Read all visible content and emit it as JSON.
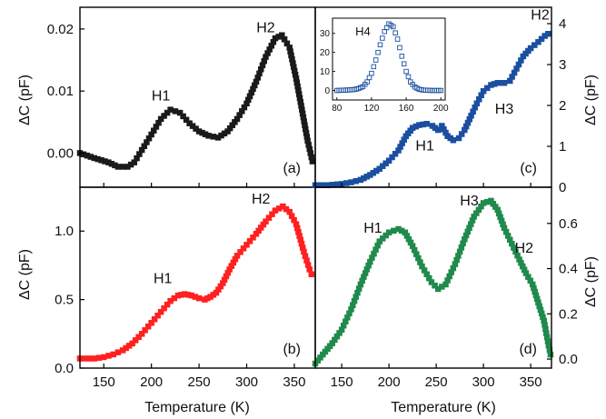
{
  "figure": {
    "x_label": "Temperature (K)",
    "y_label": "ΔC (pF)"
  },
  "chart_data": [
    {
      "id": "a",
      "type": "scatter",
      "panel_label": "(a)",
      "color": "#1a1a1a",
      "marker": "square",
      "xlabel": "Temperature (K)",
      "ylabel": "ΔC (pF)",
      "xlim": [
        125,
        372
      ],
      "ylim": [
        -0.0055,
        0.0235
      ],
      "yticks": [
        0.0,
        0.01,
        0.02
      ],
      "yticklabels": [
        "0.00",
        "0.01",
        "0.02"
      ],
      "y_axis_side": "left",
      "annotations": [
        {
          "text": "H1",
          "x": 210,
          "y": 0.0085
        },
        {
          "text": "H2",
          "x": 320,
          "y": 0.0195
        }
      ],
      "points": [
        [
          125,
          0.0
        ],
        [
          140,
          -0.0008
        ],
        [
          155,
          -0.0015
        ],
        [
          165,
          -0.0022
        ],
        [
          175,
          -0.0022
        ],
        [
          182,
          -0.0015
        ],
        [
          190,
          0.0005
        ],
        [
          200,
          0.003
        ],
        [
          210,
          0.0055
        ],
        [
          220,
          0.007
        ],
        [
          230,
          0.0065
        ],
        [
          240,
          0.0048
        ],
        [
          250,
          0.0035
        ],
        [
          260,
          0.0028
        ],
        [
          270,
          0.0025
        ],
        [
          280,
          0.0035
        ],
        [
          290,
          0.0055
        ],
        [
          300,
          0.008
        ],
        [
          310,
          0.0115
        ],
        [
          320,
          0.0155
        ],
        [
          330,
          0.0185
        ],
        [
          337,
          0.019
        ],
        [
          345,
          0.017
        ],
        [
          352,
          0.012
        ],
        [
          358,
          0.007
        ],
        [
          364,
          0.002
        ],
        [
          370,
          -0.002
        ]
      ]
    },
    {
      "id": "b",
      "type": "scatter",
      "panel_label": "(b)",
      "color": "#ff2020",
      "marker": "square",
      "xlabel": "Temperature (K)",
      "ylabel": "ΔC (pF)",
      "xlim": [
        125,
        372
      ],
      "ylim": [
        0,
        1.32
      ],
      "xticks": [
        150,
        200,
        250,
        300,
        350
      ],
      "yticks": [
        0.0,
        0.5,
        1.0
      ],
      "yticklabels": [
        "0.0",
        "0.5",
        "1.0"
      ],
      "y_axis_side": "left",
      "annotations": [
        {
          "text": "H1",
          "x": 212,
          "y": 0.62
        },
        {
          "text": "H2",
          "x": 315,
          "y": 1.2
        }
      ],
      "points": [
        [
          125,
          0.07
        ],
        [
          140,
          0.07
        ],
        [
          150,
          0.08
        ],
        [
          160,
          0.1
        ],
        [
          170,
          0.13
        ],
        [
          180,
          0.18
        ],
        [
          190,
          0.25
        ],
        [
          200,
          0.33
        ],
        [
          210,
          0.41
        ],
        [
          220,
          0.49
        ],
        [
          228,
          0.53
        ],
        [
          235,
          0.54
        ],
        [
          242,
          0.53
        ],
        [
          250,
          0.51
        ],
        [
          256,
          0.5
        ],
        [
          262,
          0.52
        ],
        [
          268,
          0.55
        ],
        [
          275,
          0.62
        ],
        [
          282,
          0.72
        ],
        [
          290,
          0.82
        ],
        [
          300,
          0.9
        ],
        [
          310,
          0.98
        ],
        [
          320,
          1.07
        ],
        [
          330,
          1.15
        ],
        [
          338,
          1.18
        ],
        [
          345,
          1.14
        ],
        [
          352,
          1.05
        ],
        [
          360,
          0.85
        ],
        [
          366,
          0.72
        ],
        [
          370,
          0.65
        ]
      ]
    },
    {
      "id": "c",
      "type": "scatter",
      "panel_label": "(c)",
      "color": "#1a4fa0",
      "marker": "square",
      "xlabel": "Temperature (K)",
      "ylabel": "ΔC (pF)",
      "xlim": [
        122,
        372
      ],
      "ylim": [
        0,
        4.4
      ],
      "yticks": [
        0,
        1,
        2,
        3,
        4
      ],
      "yticklabels": [
        "0",
        "1",
        "2",
        "3",
        "4"
      ],
      "y_axis_side": "right",
      "annotations": [
        {
          "text": "H1",
          "x": 238,
          "y": 0.9
        },
        {
          "text": "H3",
          "x": 322,
          "y": 1.8
        },
        {
          "text": "H2",
          "x": 360,
          "y": 4.1
        }
      ],
      "points": [
        [
          122,
          0.05
        ],
        [
          135,
          0.05
        ],
        [
          150,
          0.08
        ],
        [
          160,
          0.12
        ],
        [
          170,
          0.18
        ],
        [
          180,
          0.3
        ],
        [
          190,
          0.45
        ],
        [
          200,
          0.65
        ],
        [
          210,
          0.9
        ],
        [
          218,
          1.25
        ],
        [
          225,
          1.45
        ],
        [
          232,
          1.52
        ],
        [
          240,
          1.55
        ],
        [
          246,
          1.5
        ],
        [
          252,
          1.4
        ],
        [
          256,
          1.5
        ],
        [
          262,
          1.25
        ],
        [
          268,
          1.15
        ],
        [
          274,
          1.2
        ],
        [
          280,
          1.4
        ],
        [
          287,
          1.75
        ],
        [
          293,
          2.05
        ],
        [
          300,
          2.35
        ],
        [
          308,
          2.5
        ],
        [
          315,
          2.55
        ],
        [
          322,
          2.55
        ],
        [
          328,
          2.6
        ],
        [
          335,
          2.9
        ],
        [
          342,
          3.2
        ],
        [
          350,
          3.4
        ],
        [
          358,
          3.55
        ],
        [
          365,
          3.7
        ],
        [
          372,
          3.8
        ]
      ]
    },
    {
      "id": "c-inset",
      "type": "scatter",
      "panel_label": "H4",
      "color": "#1a4fa0",
      "marker": "open-square",
      "xlim": [
        75,
        205
      ],
      "ylim": [
        -5,
        38
      ],
      "xticks": [
        80,
        120,
        160,
        200
      ],
      "yticks": [
        0,
        10,
        20,
        30
      ],
      "points": [
        [
          80,
          0.0
        ],
        [
          85,
          0.1
        ],
        [
          90,
          0.2
        ],
        [
          95,
          0.3
        ],
        [
          100,
          0.5
        ],
        [
          105,
          1.0
        ],
        [
          110,
          2.0
        ],
        [
          115,
          4.5
        ],
        [
          120,
          9.0
        ],
        [
          125,
          16.0
        ],
        [
          130,
          24.0
        ],
        [
          135,
          31.0
        ],
        [
          140,
          35.0
        ],
        [
          145,
          33.5
        ],
        [
          150,
          27.0
        ],
        [
          155,
          18.0
        ],
        [
          160,
          10.0
        ],
        [
          165,
          4.5
        ],
        [
          170,
          1.8
        ],
        [
          175,
          0.6
        ],
        [
          180,
          0.2
        ],
        [
          185,
          0.1
        ],
        [
          190,
          0.0
        ],
        [
          195,
          0.0
        ],
        [
          200,
          0.0
        ]
      ]
    },
    {
      "id": "d",
      "type": "scatter",
      "panel_label": "(d)",
      "color": "#1f8a4c",
      "marker": "square",
      "xlabel": "Temperature (K)",
      "ylabel": "ΔC (pF)",
      "xlim": [
        122,
        372
      ],
      "ylim": [
        -0.04,
        0.76
      ],
      "xticks": [
        150,
        200,
        250,
        300,
        350
      ],
      "yticks": [
        0.0,
        0.2,
        0.4,
        0.6
      ],
      "yticklabels": [
        "0.0",
        "0.2",
        "0.4",
        "0.6"
      ],
      "y_axis_side": "right",
      "annotations": [
        {
          "text": "H1",
          "x": 183,
          "y": 0.56
        },
        {
          "text": "H3",
          "x": 285,
          "y": 0.68
        },
        {
          "text": "H2",
          "x": 343,
          "y": 0.47
        }
      ],
      "points": [
        [
          122,
          -0.02
        ],
        [
          130,
          0.02
        ],
        [
          140,
          0.07
        ],
        [
          150,
          0.13
        ],
        [
          160,
          0.22
        ],
        [
          170,
          0.33
        ],
        [
          180,
          0.43
        ],
        [
          190,
          0.52
        ],
        [
          200,
          0.56
        ],
        [
          210,
          0.575
        ],
        [
          217,
          0.56
        ],
        [
          225,
          0.5
        ],
        [
          235,
          0.41
        ],
        [
          245,
          0.34
        ],
        [
          252,
          0.31
        ],
        [
          260,
          0.33
        ],
        [
          270,
          0.42
        ],
        [
          280,
          0.53
        ],
        [
          290,
          0.63
        ],
        [
          300,
          0.69
        ],
        [
          308,
          0.7
        ],
        [
          315,
          0.66
        ],
        [
          322,
          0.58
        ],
        [
          330,
          0.51
        ],
        [
          338,
          0.44
        ],
        [
          345,
          0.38
        ],
        [
          352,
          0.33
        ],
        [
          358,
          0.25
        ],
        [
          364,
          0.17
        ],
        [
          369,
          0.06
        ],
        [
          372,
          0.0
        ]
      ]
    }
  ]
}
